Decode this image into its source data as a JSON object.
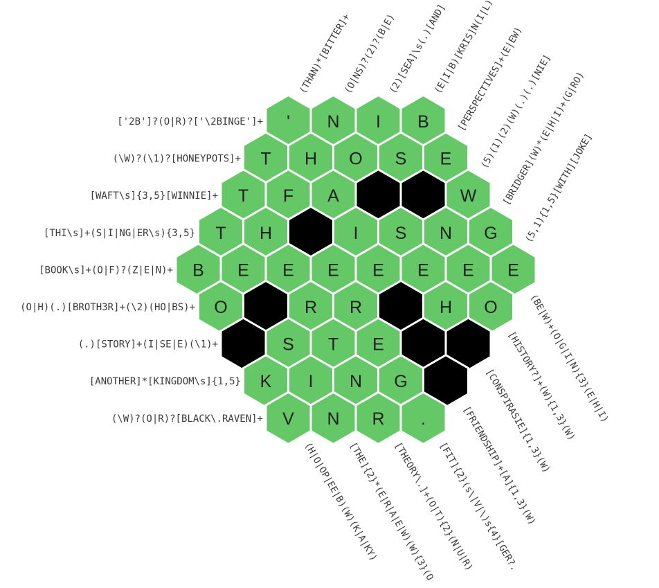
{
  "colors": {
    "cell_fill": "#65c866",
    "cell_blocked": "#000000",
    "cell_stroke": "#ffffff",
    "clue_text": "#3a3a3a",
    "letter_text": "#1e1e1e"
  },
  "grid": {
    "rows": [
      [
        "'",
        "N",
        "I",
        "B"
      ],
      [
        "T",
        "H",
        "O",
        "S",
        "E"
      ],
      [
        "T",
        "F",
        "A",
        "#",
        "#",
        "W"
      ],
      [
        "T",
        "H",
        "#",
        "I",
        "S",
        "N",
        "G"
      ],
      [
        "B",
        "E",
        "E",
        "E",
        "E",
        "E",
        "E",
        "E"
      ],
      [
        "O",
        "#",
        "R",
        "R",
        "#",
        "H",
        "O"
      ],
      [
        "#",
        "S",
        "T",
        "E",
        "#",
        "#"
      ],
      [
        "K",
        "I",
        "N",
        "G",
        "#"
      ],
      [
        "V",
        "N",
        "R",
        "."
      ]
    ]
  },
  "clues": {
    "left": [
      "['2B']?(O|R)?['\\2BINGE']+",
      "(\\W)?(\\1)?[HONEYPOTS]+",
      "[WAFT\\s]{3,5}[WINNIE]+",
      "[THI\\s]+(S|I|NG|ER\\s){3,5}",
      "[BOOK\\s]+(O|F)?(Z|E|N)+",
      "(O|H)(.)[BROTH3R]+(\\2)(HO|BS)+",
      "(.)[STORY]+(I|SE|E)(\\1)+",
      "[ANOTHER]*[KINGDOM\\s]{1,5}",
      "(\\W)?(O|R)?[BLACK\\.RAVEN]+"
    ],
    "top": [
      "(THAN)*[BITTER]+",
      "(O|NS)?(2)?(B|E)",
      "(2)[SEA]\\s(.)[AND]",
      "(E|I|B)[KRIS]N(I|L)",
      "[PERSPECTIVES]+(E|EW)",
      "(5)(1)(2)(W)(.)(.)[NIE]",
      "[BRIDGER](W)*(E|H|I)+(G|RO)",
      "(5,1){1,5}[WITH][JOKE]"
    ],
    "bottom": [
      "(H|O|OP|EE|B)(W)(K|A|KY)",
      "[THE]{2}*(E|R|A|E|W)(W){3}(O",
      "[THEORY\\.]+(O|T){2}(N|U|R)",
      "[FIT]{2}(s\\|V|\\)s{4}[GER?.",
      "[FRIENDSHIP]+[A]{1,3}(W)",
      "[CONSPIRASIE]{1,3}(W)",
      "[HISTORY?]+(W){1,3}(W)",
      "(BE|W)+(O|G|I|N){3}(E|H|I)"
    ]
  }
}
